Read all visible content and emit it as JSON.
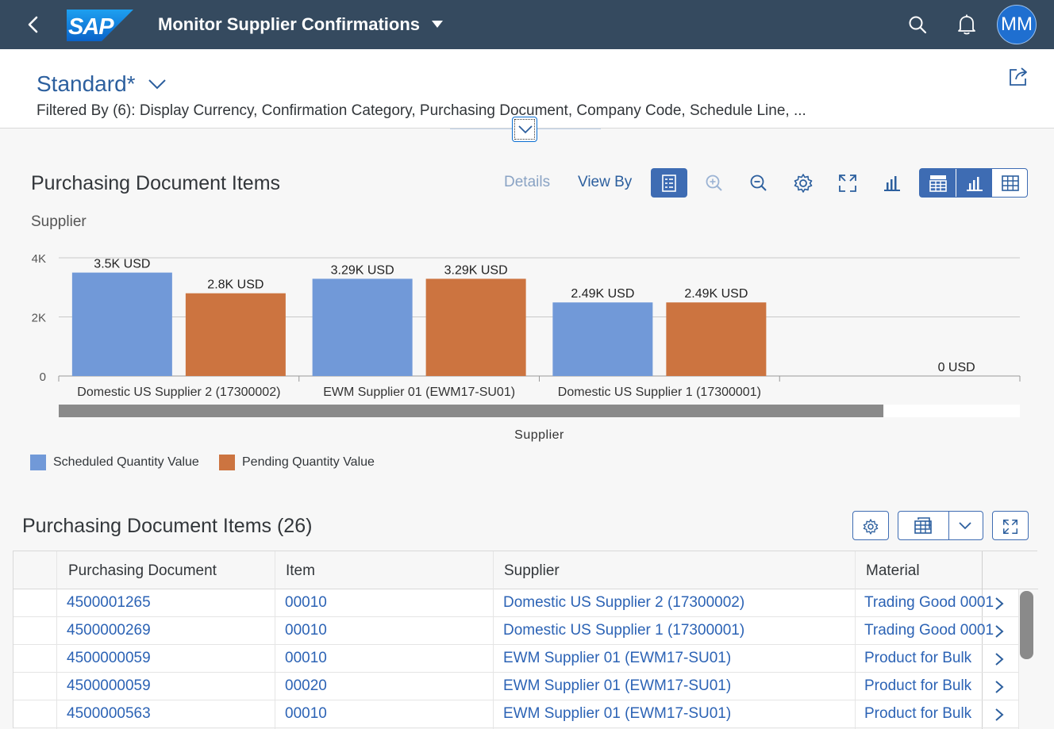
{
  "shell": {
    "logo_text": "SAP",
    "app_title": "Monitor Supplier Confirmations",
    "avatar_initials": "MM"
  },
  "header": {
    "variant": "Standard*",
    "filtered_by": "Filtered By (6): Display Currency, Confirmation Category, Purchasing Document, Company Code, Schedule Line, ..."
  },
  "chart_section": {
    "title": "Purchasing Document Items",
    "details_label": "Details",
    "view_by_label": "View By",
    "subtitle": "Supplier"
  },
  "chart_data": {
    "type": "bar",
    "categories": [
      "Domestic US Supplier 2 (17300002)",
      "EWM Supplier 01 (EWM17-SU01)",
      "Domestic US Supplier 1 (17300001)",
      ""
    ],
    "series": [
      {
        "name": "Scheduled Quantity Value",
        "color": "#7199d8",
        "values": [
          3500,
          3290,
          2490,
          0
        ],
        "labels": [
          "3.5K USD",
          "3.29K USD",
          "2.49K USD",
          ""
        ]
      },
      {
        "name": "Pending Quantity Value",
        "color": "#cc7440",
        "values": [
          2800,
          3290,
          2490,
          0
        ],
        "labels": [
          "2.8K USD",
          "3.29K USD",
          "2.49K USD",
          "0 USD"
        ]
      }
    ],
    "ylim": [
      0,
      4000
    ],
    "yticks": [
      0,
      2000,
      4000
    ],
    "ytick_labels": [
      "0",
      "2K",
      "4K"
    ],
    "xlabel": "Supplier",
    "scroll_visible_fraction": 0.858,
    "legend_position": "bottom-left",
    "grid": true
  },
  "table": {
    "title": "Purchasing Document Items (26)",
    "columns": [
      "Purchasing Document",
      "Item",
      "Supplier",
      "Material"
    ],
    "rows": [
      [
        "4500001265",
        "00010",
        "Domestic US Supplier 2 (17300002)",
        "Trading Good 0001"
      ],
      [
        "4500000269",
        "00010",
        "Domestic US Supplier 1 (17300001)",
        "Trading Good 0001"
      ],
      [
        "4500000059",
        "00010",
        "EWM Supplier 01 (EWM17-SU01)",
        "Product for Bulk"
      ],
      [
        "4500000059",
        "00020",
        "EWM Supplier 01 (EWM17-SU01)",
        "Product for Bulk"
      ],
      [
        "4500000563",
        "00010",
        "EWM Supplier 01 (EWM17-SU01)",
        "Product for Bulk"
      ]
    ]
  }
}
